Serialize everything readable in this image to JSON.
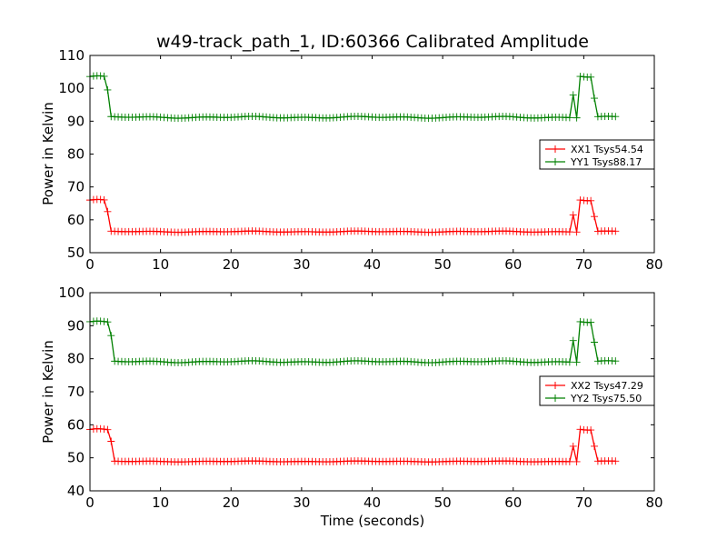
{
  "chart_data": {
    "type": "line",
    "title": "w49-track_path_1, ID:60366 Calibrated Amplitude",
    "xlabel": "Time (seconds)",
    "colors": {
      "XX": "#ff0000",
      "YY": "#008000"
    },
    "marker": "plus",
    "panels": [
      {
        "ylabel": "Power in Kelvin",
        "xlim": [
          0,
          80
        ],
        "ylim": [
          50,
          110
        ],
        "xticks": [
          0,
          10,
          20,
          30,
          40,
          50,
          60,
          70,
          80
        ],
        "yticks": [
          50,
          60,
          70,
          80,
          90,
          100,
          110
        ],
        "legend_position": "center-right",
        "series": [
          {
            "name": "XX1 Tsys54.54",
            "color": "#ff0000",
            "baseline": 56.4,
            "high": 66.0,
            "transitions": [
              [
                2.5,
                62.5
              ],
              [
                68.7,
                61.5
              ],
              [
                71.4,
                61.0
              ]
            ],
            "wiggle": 0.2,
            "x_range": [
              0,
              74.5
            ],
            "high_intervals": [
              [
                0,
                2.5
              ],
              [
                69.2,
                71.0
              ]
            ]
          },
          {
            "name": "YY1 Tsys88.17",
            "color": "#008000",
            "baseline": 91.2,
            "high": 103.6,
            "transitions": [
              [
                2.7,
                99.5
              ],
              [
                68.6,
                98.0
              ],
              [
                71.4,
                97.0
              ]
            ],
            "wiggle": 0.3,
            "x_range": [
              0,
              74.5
            ],
            "high_intervals": [
              [
                0,
                2.6
              ],
              [
                69.2,
                71.0
              ]
            ]
          }
        ]
      },
      {
        "ylabel": "Power in Kelvin",
        "xlim": [
          0,
          80
        ],
        "ylim": [
          40,
          100
        ],
        "xticks": [
          0,
          10,
          20,
          30,
          40,
          50,
          60,
          70,
          80
        ],
        "yticks": [
          40,
          50,
          60,
          70,
          80,
          90,
          100
        ],
        "legend_position": "center-right",
        "series": [
          {
            "name": "XX2 Tsys47.29",
            "color": "#ff0000",
            "baseline": 48.9,
            "high": 58.6,
            "transitions": [
              [
                2.9,
                55.0
              ],
              [
                68.7,
                53.5
              ],
              [
                71.4,
                53.5
              ]
            ],
            "wiggle": 0.15,
            "x_range": [
              0,
              74.5
            ],
            "high_intervals": [
              [
                0,
                2.6
              ],
              [
                69.2,
                71.0
              ]
            ]
          },
          {
            "name": "YY2 Tsys75.50",
            "color": "#008000",
            "baseline": 79.1,
            "high": 91.2,
            "transitions": [
              [
                2.9,
                87.0
              ],
              [
                68.6,
                85.5
              ],
              [
                71.4,
                85.0
              ]
            ],
            "wiggle": 0.3,
            "x_range": [
              0,
              74.5
            ],
            "high_intervals": [
              [
                0,
                2.6
              ],
              [
                69.2,
                71.0
              ]
            ]
          }
        ]
      }
    ]
  }
}
